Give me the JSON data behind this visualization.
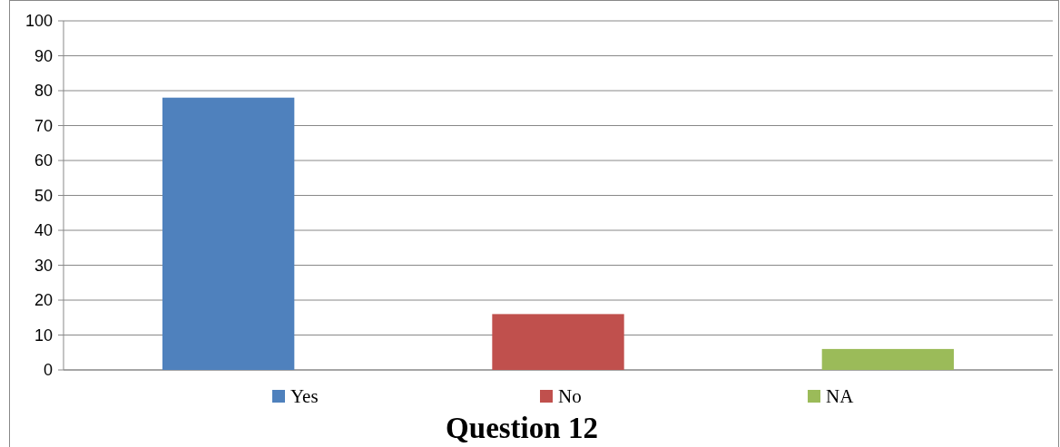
{
  "chart_data": {
    "type": "bar",
    "title": "Question 12",
    "categories": [
      null
    ],
    "series": [
      {
        "name": "Yes",
        "color": "#4f81bd",
        "values": [
          78
        ]
      },
      {
        "name": "No",
        "color": "#c0504d",
        "values": [
          16
        ]
      },
      {
        "name": "NA",
        "color": "#9bbb59",
        "values": [
          6
        ]
      }
    ],
    "ylim": [
      0,
      100
    ],
    "yticks": [
      0,
      10,
      20,
      30,
      40,
      50,
      60,
      70,
      80,
      90,
      100
    ],
    "grid": "y",
    "legend": "bottom"
  }
}
